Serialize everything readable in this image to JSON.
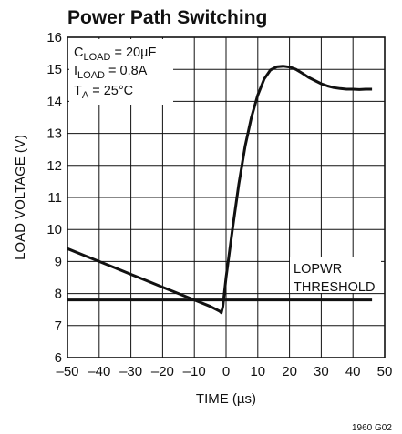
{
  "chart_data": {
    "type": "line",
    "title": "Power Path Switching",
    "xlabel": "TIME (µs)",
    "ylabel": "LOAD VOLTAGE (V)",
    "xlim": [
      -50,
      50
    ],
    "ylim": [
      6,
      16
    ],
    "grid": true,
    "x_ticks": [
      -50,
      -40,
      -30,
      -20,
      -10,
      0,
      10,
      20,
      30,
      40,
      50
    ],
    "x_tick_labels": [
      "–50",
      "–40",
      "–30",
      "–20",
      "–10",
      "0",
      "10",
      "20",
      "30",
      "40",
      "50"
    ],
    "y_ticks": [
      6,
      7,
      8,
      9,
      10,
      11,
      12,
      13,
      14,
      15,
      16
    ],
    "y_tick_labels": [
      "6",
      "7",
      "8",
      "9",
      "10",
      "11",
      "12",
      "13",
      "14",
      "15",
      "16"
    ],
    "series": [
      {
        "x": [
          -50,
          -45,
          -40,
          -35,
          -30,
          -25,
          -20,
          -15,
          -10,
          -5,
          -2,
          -1.5,
          -1,
          0,
          2,
          4,
          6,
          8,
          10,
          12,
          14,
          16,
          18,
          20,
          22,
          24,
          26,
          28,
          30,
          32,
          34,
          36,
          38,
          40,
          42,
          44,
          46
        ],
        "y": [
          9.4,
          9.2,
          9.0,
          8.8,
          8.6,
          8.4,
          8.2,
          8.0,
          7.8,
          7.6,
          7.45,
          7.4,
          7.6,
          8.5,
          10.0,
          11.4,
          12.6,
          13.5,
          14.2,
          14.7,
          14.98,
          15.08,
          15.1,
          15.07,
          15.0,
          14.88,
          14.75,
          14.65,
          14.55,
          14.48,
          14.43,
          14.4,
          14.38,
          14.38,
          14.37,
          14.38,
          14.38
        ]
      },
      {
        "name": "LOPWR THRESHOLD",
        "x": [
          -50,
          46
        ],
        "y": [
          7.8,
          7.8
        ]
      }
    ],
    "annotations": {
      "cload": {
        "base": "C",
        "sub": "LOAD",
        "rest": " = 20µF"
      },
      "iload": {
        "base": "I",
        "sub": "LOAD",
        "rest": " = 0.8A"
      },
      "ta": {
        "base": "T",
        "sub": "A",
        "rest": " = 25°C"
      },
      "lopwr_line1": "LOPWR",
      "lopwr_line2": "THRESHOLD"
    },
    "figure_code": "1960 G02"
  }
}
